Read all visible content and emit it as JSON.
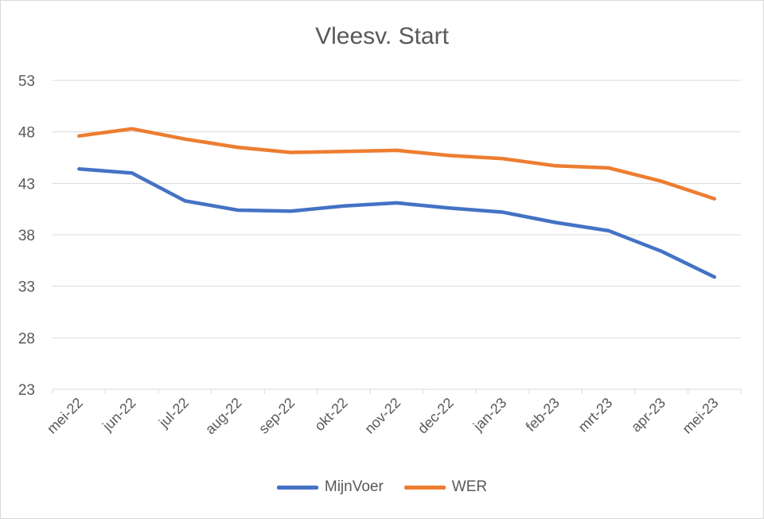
{
  "chart_data": {
    "type": "line",
    "title": "Vleesv. Start",
    "xlabel": "",
    "ylabel": "",
    "categories": [
      "mei-22",
      "jun-22",
      "jul-22",
      "aug-22",
      "sep-22",
      "okt-22",
      "nov-22",
      "dec-22",
      "jan-23",
      "feb-23",
      "mrt-23",
      "apr-23",
      "mei-23"
    ],
    "ylim": [
      23,
      53
    ],
    "yticks": [
      23,
      28,
      33,
      38,
      43,
      48,
      53
    ],
    "grid": true,
    "legend_position": "bottom",
    "series": [
      {
        "name": "MijnVoer",
        "color": "#4472C4",
        "values": [
          44.4,
          44.0,
          41.3,
          40.4,
          40.3,
          40.8,
          41.1,
          40.6,
          40.2,
          39.2,
          38.4,
          36.4,
          33.9
        ]
      },
      {
        "name": "WER",
        "color": "#ED7D31",
        "values": [
          47.6,
          48.3,
          47.3,
          46.5,
          46.0,
          46.1,
          46.2,
          45.7,
          45.4,
          44.7,
          44.5,
          43.2,
          41.5
        ]
      }
    ]
  }
}
